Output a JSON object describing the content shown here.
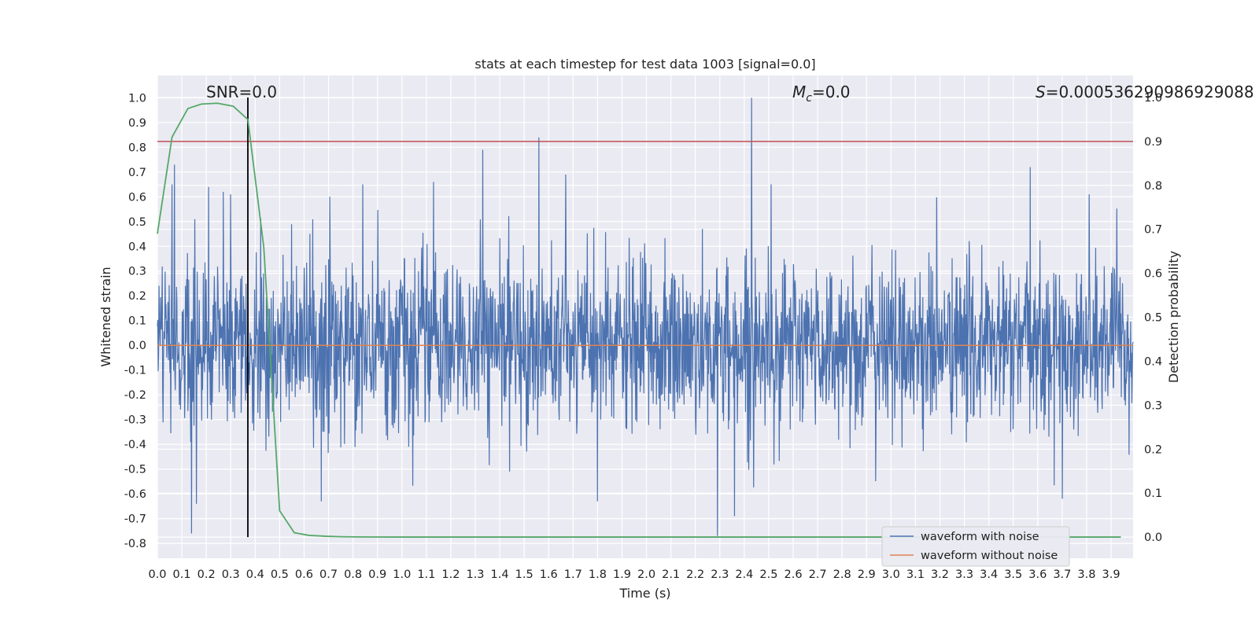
{
  "chart_data": {
    "type": "line",
    "title": "stats at each timestep for test data 1003 [signal=0.0]",
    "xlabel": "Time (s)",
    "ylabel": "Whitened strain",
    "y2label": "Detection probability",
    "xlim": [
      0.0,
      3.99
    ],
    "ylim": [
      -0.86,
      1.09
    ],
    "y2lim": [
      -0.048,
      1.05
    ],
    "x_ticks": [
      "0.0",
      "0.1",
      "0.2",
      "0.3",
      "0.4",
      "0.5",
      "0.6",
      "0.7",
      "0.8",
      "0.9",
      "1.0",
      "1.1",
      "1.2",
      "1.3",
      "1.4",
      "1.5",
      "1.6",
      "1.7",
      "1.8",
      "1.9",
      "2.0",
      "2.1",
      "2.2",
      "2.3",
      "2.4",
      "2.5",
      "2.6",
      "2.7",
      "2.8",
      "2.9",
      "3.0",
      "3.1",
      "3.2",
      "3.3",
      "3.4",
      "3.5",
      "3.6",
      "3.7",
      "3.8",
      "3.9"
    ],
    "y_ticks": [
      "-0.8",
      "-0.7",
      "-0.6",
      "-0.5",
      "-0.4",
      "-0.3",
      "-0.2",
      "-0.1",
      "0.0",
      "0.1",
      "0.2",
      "0.3",
      "0.4",
      "0.5",
      "0.6",
      "0.7",
      "0.8",
      "0.9",
      "1.0"
    ],
    "y2_ticks": [
      "0.0",
      "0.1",
      "0.2",
      "0.3",
      "0.4",
      "0.5",
      "0.6",
      "0.7",
      "0.8",
      "0.9",
      "1.0"
    ],
    "grid": true,
    "legend_position": "lower-right",
    "annotations": {
      "snr": "SNR=0.0",
      "mc_symbol": "M",
      "mc_sub": "c",
      "mc_value": "=0.0",
      "s_symbol": "S",
      "s_value": "=0.000536290986929088"
    },
    "series": [
      {
        "name": "waveform with noise",
        "color": "#4c72b0",
        "axis": "left",
        "noise_envelope_sd": 0.17,
        "peaks": [
          {
            "x": 0.06,
            "y": 0.65
          },
          {
            "x": 0.07,
            "y": 0.73
          },
          {
            "x": 0.14,
            "y": -0.76
          },
          {
            "x": 0.16,
            "y": -0.64
          },
          {
            "x": 0.21,
            "y": 0.64
          },
          {
            "x": 0.27,
            "y": 0.62
          },
          {
            "x": 0.3,
            "y": 0.61
          },
          {
            "x": 0.67,
            "y": -0.63
          },
          {
            "x": 0.84,
            "y": 0.65
          },
          {
            "x": 1.13,
            "y": 0.66
          },
          {
            "x": 1.33,
            "y": 0.79
          },
          {
            "x": 1.56,
            "y": 0.84
          },
          {
            "x": 1.67,
            "y": 0.69
          },
          {
            "x": 1.8,
            "y": -0.63
          },
          {
            "x": 2.29,
            "y": -0.77
          },
          {
            "x": 2.36,
            "y": -0.69
          },
          {
            "x": 2.43,
            "y": 1.0
          },
          {
            "x": 2.51,
            "y": 0.65
          },
          {
            "x": 3.57,
            "y": 0.72
          },
          {
            "x": 3.7,
            "y": -0.62
          },
          {
            "x": 3.81,
            "y": 0.61
          }
        ]
      },
      {
        "name": "waveform without noise",
        "color": "#dd8452",
        "axis": "left",
        "x": [
          0.0,
          3.99
        ],
        "y": [
          0.0,
          0.0
        ]
      },
      {
        "name": "detection probability",
        "color": "#55a868",
        "axis": "right",
        "x": [
          0.0,
          0.06,
          0.125,
          0.18,
          0.245,
          0.31,
          0.37,
          0.435,
          0.5,
          0.56,
          0.62,
          0.69,
          0.75,
          0.81,
          0.88,
          1.0,
          1.5,
          2.0,
          2.5,
          3.0,
          3.5,
          3.94
        ],
        "y": [
          0.69,
          0.91,
          0.975,
          0.985,
          0.987,
          0.98,
          0.95,
          0.66,
          0.06,
          0.01,
          0.004,
          0.002,
          0.001,
          0.0005,
          0.0003,
          0.0002,
          0.0002,
          0.0002,
          0.0002,
          0.0002,
          0.0002,
          0.0002
        ]
      }
    ],
    "threshold_line": {
      "axis": "right",
      "value": 0.9,
      "color": "#c44e52"
    },
    "marker_line": {
      "x": 0.37,
      "y_from": 0.0,
      "y_to": 1.0,
      "axis": "right",
      "color": "#000000"
    },
    "legend": [
      {
        "label": "waveform with noise",
        "color": "#4c72b0"
      },
      {
        "label": "waveform without noise",
        "color": "#dd8452"
      }
    ]
  }
}
